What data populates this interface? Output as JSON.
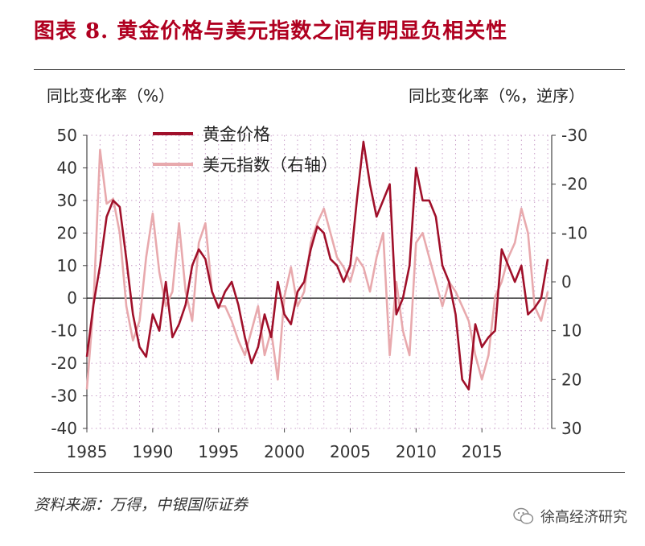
{
  "header": {
    "title": "图表 8. 黄金价格与美元指数之间有明显负相关性"
  },
  "footer": {
    "source": "资料来源：万得，中银国际证券",
    "brand": "徐高经济研究"
  },
  "colors": {
    "gold": "#a0102a",
    "usd": "#e8a9ad",
    "title": "#b00020",
    "grid": "#c9a0c9"
  },
  "chart_data": {
    "type": "line",
    "title": "图表 8. 黄金价格与美元指数之间有明显负相关性",
    "y_left_label": "同比变化率（%）",
    "y_right_label": "同比变化率（%，逆序）",
    "ylim_left": [
      -40,
      50
    ],
    "ylim_right": [
      30,
      -30
    ],
    "y_left_ticks": [
      50,
      40,
      30,
      20,
      10,
      0,
      -10,
      -20,
      -30,
      -40
    ],
    "y_right_ticks": [
      -30,
      -20,
      -10,
      0,
      10,
      20,
      30
    ],
    "xlim": [
      1985,
      2020.3
    ],
    "x_ticks": [
      1985,
      1990,
      1995,
      2000,
      2005,
      2010,
      2015
    ],
    "grid": true,
    "legend_position": "top-left",
    "series": [
      {
        "name": "黄金价格",
        "axis": "left",
        "x": [
          1985.0,
          1985.5,
          1986.0,
          1986.5,
          1987.0,
          1987.5,
          1988.0,
          1988.5,
          1989.0,
          1989.5,
          1990.0,
          1990.5,
          1991.0,
          1991.5,
          1992.0,
          1992.5,
          1993.0,
          1993.5,
          1994.0,
          1994.5,
          1995.0,
          1995.5,
          1996.0,
          1996.5,
          1997.0,
          1997.5,
          1998.0,
          1998.5,
          1999.0,
          1999.5,
          2000.0,
          2000.5,
          2001.0,
          2001.5,
          2002.0,
          2002.5,
          2003.0,
          2003.5,
          2004.0,
          2004.5,
          2005.0,
          2005.5,
          2006.0,
          2006.5,
          2007.0,
          2007.5,
          2008.0,
          2008.5,
          2009.0,
          2009.5,
          2010.0,
          2010.5,
          2011.0,
          2011.5,
          2012.0,
          2012.5,
          2013.0,
          2013.5,
          2014.0,
          2014.5,
          2015.0,
          2015.5,
          2016.0,
          2016.5,
          2017.0,
          2017.5,
          2018.0,
          2018.5,
          2019.0,
          2019.5,
          2020.0
        ],
        "values": [
          -18,
          -2,
          10,
          25,
          30,
          28,
          12,
          -5,
          -15,
          -18,
          -5,
          -10,
          5,
          -12,
          -8,
          -2,
          10,
          15,
          12,
          2,
          -3,
          2,
          5,
          -2,
          -12,
          -20,
          -15,
          -5,
          -12,
          5,
          -5,
          -8,
          2,
          5,
          15,
          22,
          20,
          12,
          10,
          5,
          10,
          30,
          48,
          35,
          25,
          30,
          35,
          -5,
          0,
          10,
          40,
          30,
          30,
          25,
          10,
          5,
          -5,
          -25,
          -28,
          -8,
          -15,
          -12,
          -10,
          15,
          10,
          5,
          10,
          -5,
          -3,
          0,
          12
        ]
      },
      {
        "name": "美元指数（右轴）",
        "axis": "right",
        "x": [
          1985.0,
          1985.5,
          1986.0,
          1986.5,
          1987.0,
          1987.5,
          1988.0,
          1988.5,
          1989.0,
          1989.5,
          1990.0,
          1990.5,
          1991.0,
          1991.5,
          1992.0,
          1992.5,
          1993.0,
          1993.5,
          1994.0,
          1994.5,
          1995.0,
          1995.5,
          1996.0,
          1996.5,
          1997.0,
          1997.5,
          1998.0,
          1998.5,
          1999.0,
          1999.5,
          2000.0,
          2000.5,
          2001.0,
          2001.5,
          2002.0,
          2002.5,
          2003.0,
          2003.5,
          2004.0,
          2004.5,
          2005.0,
          2005.5,
          2006.0,
          2006.5,
          2007.0,
          2007.5,
          2008.0,
          2008.5,
          2009.0,
          2009.5,
          2010.0,
          2010.5,
          2011.0,
          2011.5,
          2012.0,
          2012.5,
          2013.0,
          2013.5,
          2014.0,
          2014.5,
          2015.0,
          2015.5,
          2016.0,
          2016.5,
          2017.0,
          2017.5,
          2018.0,
          2018.5,
          2019.0,
          2019.5,
          2020.0
        ],
        "values": [
          22,
          5,
          -27,
          -16,
          -17,
          -10,
          5,
          12,
          8,
          -5,
          -14,
          -2,
          5,
          2,
          -12,
          2,
          8,
          -8,
          -12,
          2,
          5,
          5,
          8,
          12,
          15,
          10,
          5,
          15,
          10,
          20,
          3,
          -3,
          5,
          2,
          -8,
          -12,
          -15,
          -10,
          -5,
          -3,
          0,
          -5,
          -3,
          2,
          -5,
          -10,
          15,
          0,
          10,
          15,
          -8,
          -10,
          -5,
          0,
          5,
          0,
          2,
          5,
          8,
          15,
          20,
          15,
          3,
          0,
          -5,
          -8,
          -15,
          -10,
          5,
          8,
          2
        ]
      }
    ]
  }
}
